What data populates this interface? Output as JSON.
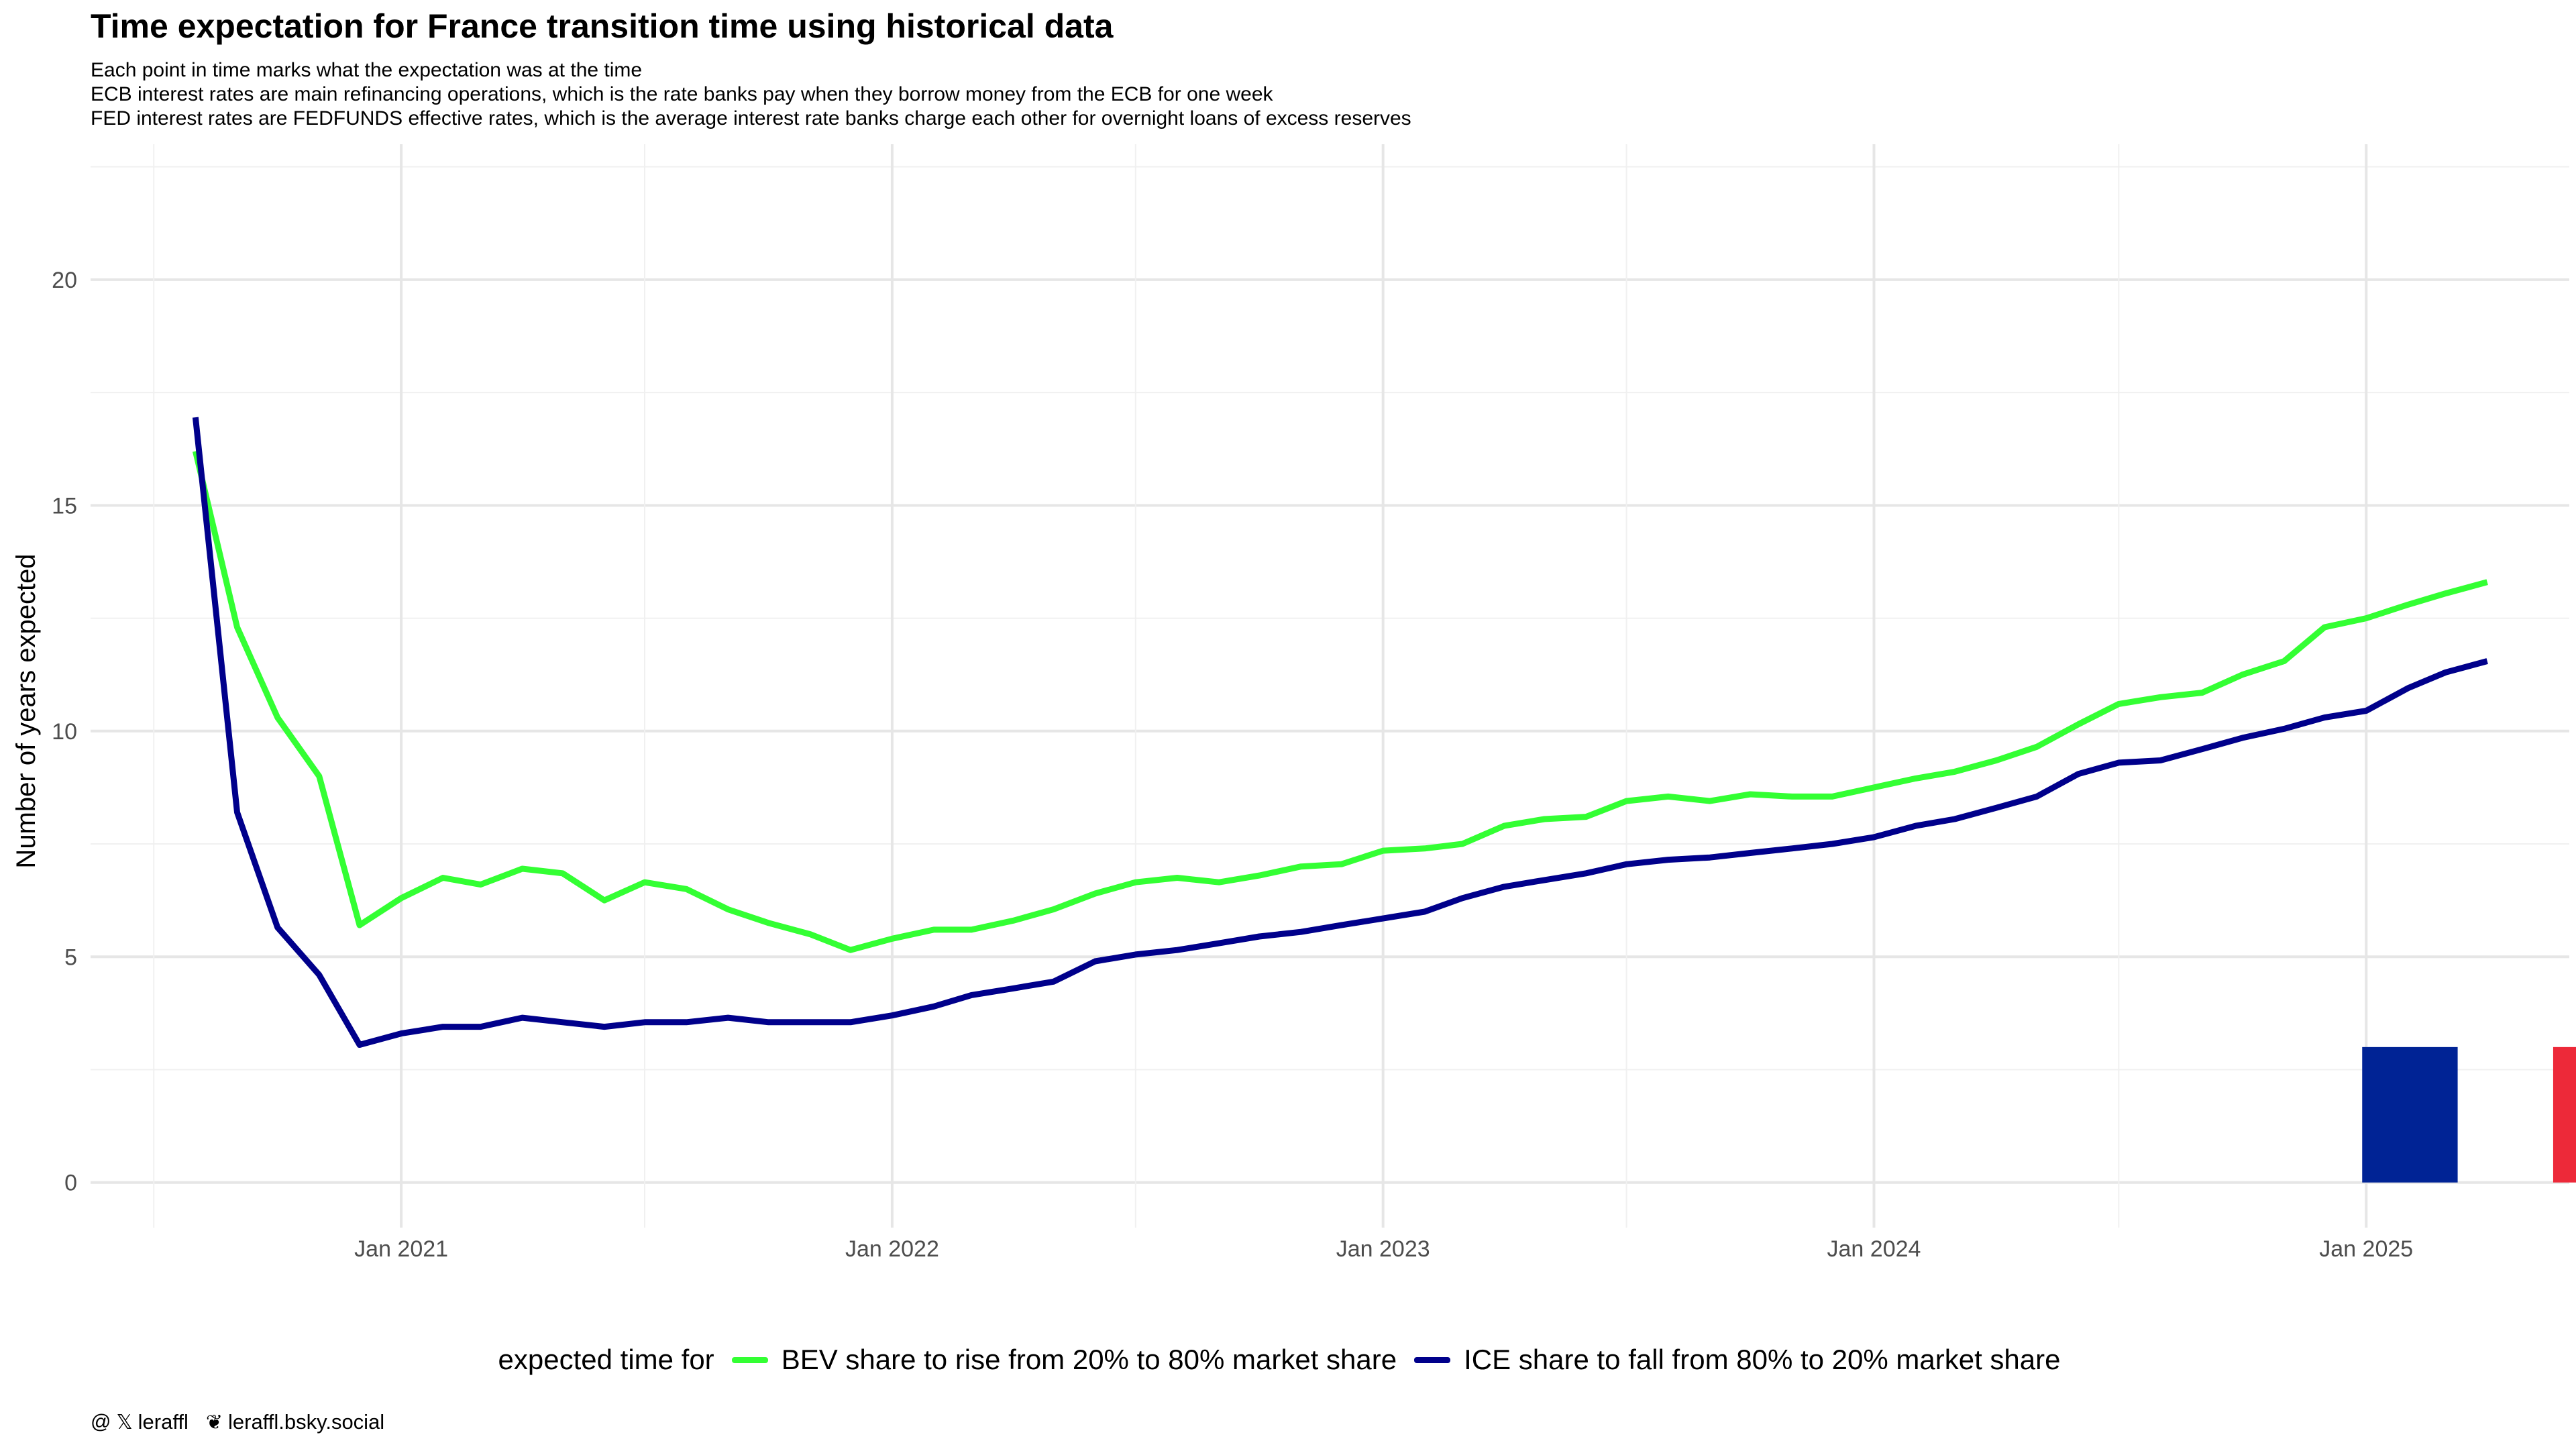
{
  "chart_data": {
    "type": "line",
    "title": "Time expectation for France transition time using historical data",
    "subtitle": [
      "Each point in time marks what the expectation was at the time",
      "ECB interest rates are main refinancing operations, which is the rate banks pay when they borrow money from the ECB for one week",
      "FED interest rates are FEDFUNDS effective rates, which is the average interest rate banks charge each other for overnight loans of excess reserves"
    ],
    "xlabel": "",
    "ylabel": "Number of years expected",
    "xlim": [
      "2020-05-15",
      "2025-06-01"
    ],
    "ylim": [
      -1,
      23
    ],
    "y_ticks": [
      0,
      5,
      10,
      15,
      20
    ],
    "x_ticks": [
      {
        "date": "2021-01-01",
        "label": "Jan 2021"
      },
      {
        "date": "2022-01-01",
        "label": "Jan 2022"
      },
      {
        "date": "2023-01-01",
        "label": "Jan 2023"
      },
      {
        "date": "2024-01-01",
        "label": "Jan 2024"
      },
      {
        "date": "2025-01-01",
        "label": "Jan 2025"
      }
    ],
    "x_minor_ticks": [
      "2020-07-01",
      "2021-07-01",
      "2022-07-01",
      "2023-07-01",
      "2024-07-01"
    ],
    "grid": true,
    "legend_position": "bottom",
    "legend_title": "expected time for",
    "dates": [
      "2020-08-01",
      "2020-09-01",
      "2020-10-01",
      "2020-11-01",
      "2020-12-01",
      "2021-01-01",
      "2021-02-01",
      "2021-03-01",
      "2021-04-01",
      "2021-05-01",
      "2021-06-01",
      "2021-07-01",
      "2021-08-01",
      "2021-09-01",
      "2021-10-01",
      "2021-11-01",
      "2021-12-01",
      "2022-01-01",
      "2022-02-01",
      "2022-03-01",
      "2022-04-01",
      "2022-05-01",
      "2022-06-01",
      "2022-07-01",
      "2022-08-01",
      "2022-09-01",
      "2022-10-01",
      "2022-11-01",
      "2022-12-01",
      "2023-01-01",
      "2023-02-01",
      "2023-03-01",
      "2023-04-01",
      "2023-05-01",
      "2023-06-01",
      "2023-07-01",
      "2023-08-01",
      "2023-09-01",
      "2023-10-01",
      "2023-11-01",
      "2023-12-01",
      "2024-01-01",
      "2024-02-01",
      "2024-03-01",
      "2024-04-01",
      "2024-05-01",
      "2024-06-01",
      "2024-07-01",
      "2024-08-01",
      "2024-09-01",
      "2024-10-01",
      "2024-11-01",
      "2024-12-01",
      "2025-01-01",
      "2025-02-01",
      "2025-03-01",
      "2025-04-01"
    ],
    "series": [
      {
        "name": "BEV share to rise from 20% to 80% market share",
        "color": "#33ff33",
        "values": [
          16.2,
          12.3,
          10.3,
          9.0,
          5.7,
          6.3,
          6.75,
          6.6,
          6.95,
          6.85,
          6.25,
          6.65,
          6.5,
          6.05,
          5.75,
          5.5,
          5.15,
          5.4,
          5.6,
          5.6,
          5.8,
          6.05,
          6.4,
          6.65,
          6.75,
          6.65,
          6.8,
          7.0,
          7.05,
          7.35,
          7.4,
          7.5,
          7.9,
          8.05,
          8.1,
          8.45,
          8.55,
          8.45,
          8.6,
          8.55,
          8.55,
          8.75,
          8.95,
          9.1,
          9.35,
          9.65,
          10.15,
          10.6,
          10.75,
          10.85,
          11.25,
          11.55,
          12.3,
          12.5,
          12.8,
          13.05,
          13.3
        ]
      },
      {
        "name": "ICE share to fall from 80% to 20% market share",
        "color": "#00008b",
        "values": [
          16.95,
          8.2,
          5.65,
          4.6,
          3.05,
          3.3,
          3.45,
          3.45,
          3.65,
          3.55,
          3.45,
          3.55,
          3.55,
          3.65,
          3.55,
          3.55,
          3.55,
          3.7,
          3.9,
          4.15,
          4.3,
          4.45,
          4.9,
          5.05,
          5.15,
          5.3,
          5.45,
          5.55,
          5.7,
          5.85,
          6.0,
          6.3,
          6.55,
          6.7,
          6.85,
          7.05,
          7.15,
          7.2,
          7.3,
          7.4,
          7.5,
          7.65,
          7.9,
          8.05,
          8.3,
          8.55,
          9.05,
          9.3,
          9.35,
          9.6,
          9.85,
          10.05,
          10.3,
          10.45,
          10.95,
          11.3,
          11.55
        ]
      }
    ],
    "flag_bars": [
      {
        "name": "flag-blue",
        "color": "#002395",
        "date_start": "2024-12-29",
        "date_end": "2025-03-10",
        "value": 3
      },
      {
        "name": "flag-red",
        "color": "#ed2939",
        "date_start": "2025-05-20",
        "date_end": "2025-07-31",
        "value": 3
      }
    ],
    "footer": {
      "handle": "leraffl",
      "bluesky": "leraffl.bsky.social"
    }
  }
}
